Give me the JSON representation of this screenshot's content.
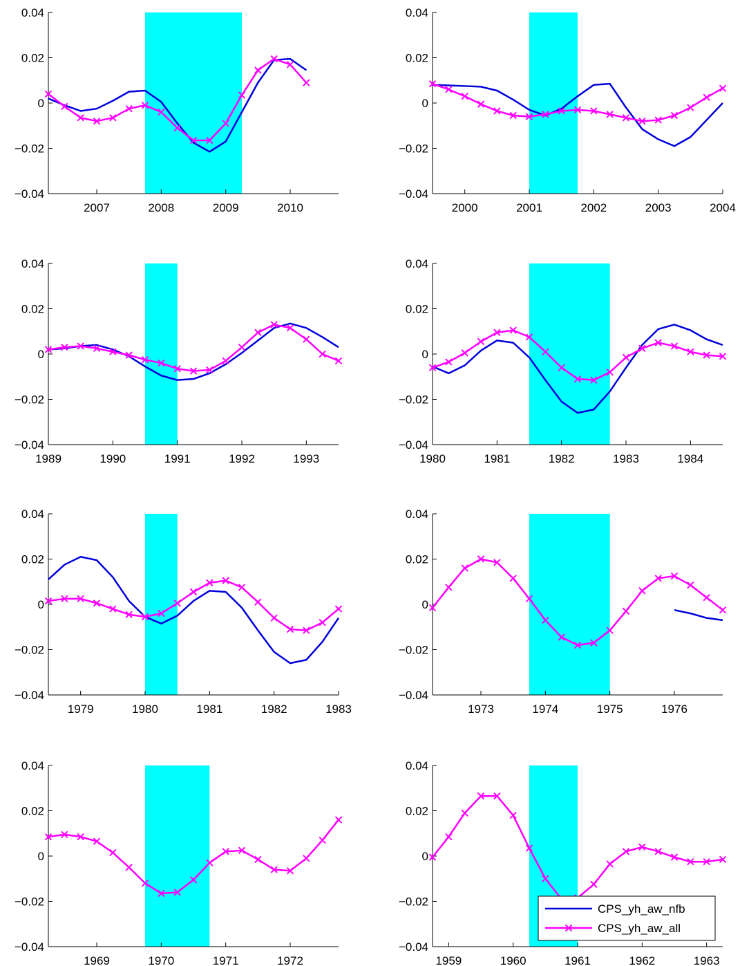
{
  "colors": {
    "recession": "#00FFFF",
    "nfb": "#0000DD",
    "all": "#FF00FF",
    "axis": "#000000"
  },
  "legend": {
    "placement": "bottom-right of last panel",
    "items": [
      {
        "name": "CPS_yh_aw_nfb",
        "color": "#0000DD",
        "marker": "none"
      },
      {
        "name": "CPS_yh_aw_all",
        "color": "#FF00FF",
        "marker": "x"
      }
    ]
  },
  "chart_data": [
    {
      "type": "line",
      "xlim": [
        2006.25,
        2010.75
      ],
      "ylim": [
        -0.04,
        0.04
      ],
      "yticks": [
        -0.04,
        -0.02,
        0,
        0.02,
        0.04
      ],
      "ytick_labels": [
        "−0.04",
        "−0.02",
        "0",
        "0.02",
        "0.04"
      ],
      "xticks": [
        2007,
        2008,
        2009,
        2010
      ],
      "xtick_labels": [
        "2007",
        "2008",
        "2009",
        "2010"
      ],
      "recession": [
        2007.75,
        2009.25
      ],
      "series": [
        {
          "name": "CPS_yh_aw_nfb",
          "x": [
            2006.25,
            2006.5,
            2006.75,
            2007.0,
            2007.25,
            2007.5,
            2007.75,
            2008.0,
            2008.25,
            2008.5,
            2008.75,
            2009.0,
            2009.25,
            2009.5,
            2009.75,
            2010.0,
            2010.25
          ],
          "y": [
            0.002,
            -0.001,
            -0.0035,
            -0.0025,
            0.001,
            0.005,
            0.0055,
            0.0005,
            -0.009,
            -0.0175,
            -0.0215,
            -0.017,
            -0.004,
            0.009,
            0.019,
            0.0195,
            0.0145
          ]
        },
        {
          "name": "CPS_yh_aw_all",
          "x": [
            2006.25,
            2006.5,
            2006.75,
            2007.0,
            2007.25,
            2007.5,
            2007.75,
            2008.0,
            2008.25,
            2008.5,
            2008.75,
            2009.0,
            2009.25,
            2009.5,
            2009.75,
            2010.0,
            2010.25
          ],
          "y": [
            0.004,
            -0.0015,
            -0.0065,
            -0.008,
            -0.0065,
            -0.0025,
            -0.001,
            -0.004,
            -0.011,
            -0.0165,
            -0.0165,
            -0.009,
            0.0035,
            0.0145,
            0.0195,
            0.017,
            0.009
          ]
        }
      ]
    },
    {
      "type": "line",
      "xlim": [
        1999.5,
        2004.0
      ],
      "ylim": [
        -0.04,
        0.04
      ],
      "yticks": [
        -0.04,
        -0.02,
        0,
        0.02,
        0.04
      ],
      "ytick_labels": [
        "−0.04",
        "−0.02",
        "0",
        "0.02",
        "0.04"
      ],
      "xticks": [
        2000,
        2001,
        2002,
        2003,
        2004
      ],
      "xtick_labels": [
        "2000",
        "2001",
        "2002",
        "2003",
        "2004"
      ],
      "recession": [
        2001.0,
        2001.75
      ],
      "series": [
        {
          "name": "CPS_yh_aw_nfb",
          "x": [
            1999.5,
            1999.75,
            2000.0,
            2000.25,
            2000.5,
            2000.75,
            2001.0,
            2001.25,
            2001.5,
            2001.75,
            2002.0,
            2002.25,
            2002.5,
            2002.75,
            2003.0,
            2003.25,
            2003.5,
            2003.75,
            2004.0
          ],
          "y": [
            0.008,
            0.0078,
            0.0075,
            0.0072,
            0.0055,
            0.0015,
            -0.003,
            -0.0055,
            -0.0025,
            0.003,
            0.008,
            0.0085,
            -0.002,
            -0.0115,
            -0.016,
            -0.019,
            -0.015,
            -0.0075,
            0.0
          ]
        },
        {
          "name": "CPS_yh_aw_all",
          "x": [
            1999.5,
            1999.75,
            2000.0,
            2000.25,
            2000.5,
            2000.75,
            2001.0,
            2001.25,
            2001.5,
            2001.75,
            2002.0,
            2002.25,
            2002.5,
            2002.75,
            2003.0,
            2003.25,
            2003.5,
            2003.75,
            2004.0
          ],
          "y": [
            0.0085,
            0.006,
            0.003,
            -0.0005,
            -0.0035,
            -0.0055,
            -0.006,
            -0.005,
            -0.0035,
            -0.003,
            -0.0035,
            -0.005,
            -0.0065,
            -0.008,
            -0.0075,
            -0.0055,
            -0.002,
            0.0025,
            0.0065
          ]
        }
      ]
    },
    {
      "type": "line",
      "xlim": [
        1989.0,
        1993.5
      ],
      "ylim": [
        -0.04,
        0.04
      ],
      "yticks": [
        -0.04,
        -0.02,
        0,
        0.02,
        0.04
      ],
      "ytick_labels": [
        "−0.04",
        "−0.02",
        "0",
        "0.02",
        "0.04"
      ],
      "xticks": [
        1989,
        1990,
        1991,
        1992,
        1993
      ],
      "xtick_labels": [
        "1989",
        "1990",
        "1991",
        "1992",
        "1993"
      ],
      "recession": [
        1990.5,
        1991.0
      ],
      "series": [
        {
          "name": "CPS_yh_aw_nfb",
          "x": [
            1989.0,
            1989.25,
            1989.5,
            1989.75,
            1990.0,
            1990.25,
            1990.5,
            1990.75,
            1991.0,
            1991.25,
            1991.5,
            1991.75,
            1992.0,
            1992.25,
            1992.5,
            1992.75,
            1993.0,
            1993.25,
            1993.5
          ],
          "y": [
            0.002,
            0.0025,
            0.0035,
            0.004,
            0.002,
            -0.001,
            -0.0055,
            -0.0095,
            -0.0115,
            -0.011,
            -0.0085,
            -0.0045,
            0.0005,
            0.006,
            0.0115,
            0.0135,
            0.0115,
            0.0075,
            0.003
          ]
        },
        {
          "name": "CPS_yh_aw_all",
          "x": [
            1989.0,
            1989.25,
            1989.5,
            1989.75,
            1990.0,
            1990.25,
            1990.5,
            1990.75,
            1991.0,
            1991.25,
            1991.5,
            1991.75,
            1992.0,
            1992.25,
            1992.5,
            1992.75,
            1993.0,
            1993.25,
            1993.5
          ],
          "y": [
            0.002,
            0.003,
            0.0035,
            0.0025,
            0.001,
            -0.0005,
            -0.0025,
            -0.004,
            -0.0065,
            -0.0075,
            -0.007,
            -0.003,
            0.003,
            0.0095,
            0.013,
            0.0115,
            0.0065,
            0.0,
            -0.003
          ]
        }
      ]
    },
    {
      "type": "line",
      "xlim": [
        1980.0,
        1984.5
      ],
      "ylim": [
        -0.04,
        0.04
      ],
      "yticks": [
        -0.04,
        -0.02,
        0,
        0.02,
        0.04
      ],
      "ytick_labels": [
        "−0.04",
        "−0.02",
        "0",
        "0.02",
        "0.04"
      ],
      "xticks": [
        1980,
        1981,
        1982,
        1983,
        1984
      ],
      "xtick_labels": [
        "1980",
        "1981",
        "1982",
        "1983",
        "1984"
      ],
      "recession": [
        1981.5,
        1982.75
      ],
      "series": [
        {
          "name": "CPS_yh_aw_nfb",
          "x": [
            1980.0,
            1980.25,
            1980.5,
            1980.75,
            1981.0,
            1981.25,
            1981.5,
            1981.75,
            1982.0,
            1982.25,
            1982.5,
            1982.75,
            1983.0,
            1983.25,
            1983.5,
            1983.75,
            1984.0,
            1984.25,
            1984.5
          ],
          "y": [
            -0.0055,
            -0.0085,
            -0.005,
            0.0015,
            0.006,
            0.005,
            -0.0015,
            -0.0115,
            -0.021,
            -0.026,
            -0.0245,
            -0.0165,
            -0.006,
            0.004,
            0.011,
            0.013,
            0.0105,
            0.0065,
            0.004
          ]
        },
        {
          "name": "CPS_yh_aw_all",
          "x": [
            1980.0,
            1980.25,
            1980.5,
            1980.75,
            1981.0,
            1981.25,
            1981.5,
            1981.75,
            1982.0,
            1982.25,
            1982.5,
            1982.75,
            1983.0,
            1983.25,
            1983.5,
            1983.75,
            1984.0,
            1984.25,
            1984.5
          ],
          "y": [
            -0.006,
            -0.0035,
            0.0005,
            0.0055,
            0.0095,
            0.0105,
            0.0075,
            0.001,
            -0.006,
            -0.011,
            -0.0115,
            -0.008,
            -0.0015,
            0.0025,
            0.005,
            0.0035,
            0.001,
            -0.0005,
            -0.001
          ]
        }
      ]
    },
    {
      "type": "line",
      "xlim": [
        1978.5,
        1983.0
      ],
      "ylim": [
        -0.04,
        0.04
      ],
      "yticks": [
        -0.04,
        -0.02,
        0,
        0.02,
        0.04
      ],
      "ytick_labels": [
        "−0.04",
        "−0.02",
        "0",
        "0.02",
        "0.04"
      ],
      "xticks": [
        1979,
        1980,
        1981,
        1982,
        1983
      ],
      "xtick_labels": [
        "1979",
        "1980",
        "1981",
        "1982",
        "1983"
      ],
      "recession": [
        1980.0,
        1980.5
      ],
      "series": [
        {
          "name": "CPS_yh_aw_nfb",
          "x": [
            1978.5,
            1978.75,
            1979.0,
            1979.25,
            1979.5,
            1979.75,
            1980.0,
            1980.25,
            1980.5,
            1980.75,
            1981.0,
            1981.25,
            1981.5,
            1981.75,
            1982.0,
            1982.25,
            1982.5,
            1982.75,
            1983.0
          ],
          "y": [
            0.011,
            0.0175,
            0.021,
            0.0195,
            0.012,
            0.0015,
            -0.0055,
            -0.0085,
            -0.005,
            0.0015,
            0.006,
            0.0055,
            -0.0015,
            -0.0115,
            -0.021,
            -0.026,
            -0.0245,
            -0.0165,
            -0.006
          ]
        },
        {
          "name": "CPS_yh_aw_all",
          "x": [
            1978.5,
            1978.75,
            1979.0,
            1979.25,
            1979.5,
            1979.75,
            1980.0,
            1980.25,
            1980.5,
            1980.75,
            1981.0,
            1981.25,
            1981.5,
            1981.75,
            1982.0,
            1982.25,
            1982.5,
            1982.75,
            1983.0
          ],
          "y": [
            0.0015,
            0.0025,
            0.0025,
            0.0005,
            -0.002,
            -0.0045,
            -0.0055,
            -0.004,
            0.0005,
            0.0055,
            0.0095,
            0.0105,
            0.0075,
            0.001,
            -0.006,
            -0.011,
            -0.0115,
            -0.008,
            -0.002
          ]
        }
      ]
    },
    {
      "type": "line",
      "xlim": [
        1972.25,
        1976.75
      ],
      "ylim": [
        -0.04,
        0.04
      ],
      "yticks": [
        -0.04,
        -0.02,
        0,
        0.02,
        0.04
      ],
      "ytick_labels": [
        "−0.04",
        "−0.02",
        "0",
        "0.02",
        "0.04"
      ],
      "xticks": [
        1973,
        1974,
        1975,
        1976
      ],
      "xtick_labels": [
        "1973",
        "1974",
        "1975",
        "1976"
      ],
      "recession": [
        1973.75,
        1975.0
      ],
      "series": [
        {
          "name": "CPS_yh_aw_nfb",
          "x": [
            1976.0,
            1976.25,
            1976.5,
            1976.75
          ],
          "y": [
            -0.0025,
            -0.004,
            -0.006,
            -0.007
          ]
        },
        {
          "name": "CPS_yh_aw_all",
          "x": [
            1972.25,
            1972.5,
            1972.75,
            1973.0,
            1973.25,
            1973.5,
            1973.75,
            1974.0,
            1974.25,
            1974.5,
            1974.75,
            1975.0,
            1975.25,
            1975.5,
            1975.75,
            1976.0,
            1976.25,
            1976.5,
            1976.75
          ],
          "y": [
            -0.0015,
            0.0075,
            0.016,
            0.02,
            0.0185,
            0.0115,
            0.0025,
            -0.007,
            -0.0145,
            -0.018,
            -0.017,
            -0.0115,
            -0.003,
            0.006,
            0.0115,
            0.0125,
            0.0085,
            0.003,
            -0.0025
          ]
        }
      ]
    },
    {
      "type": "line",
      "xlim": [
        1968.25,
        1972.75
      ],
      "ylim": [
        -0.04,
        0.04
      ],
      "yticks": [
        -0.04,
        -0.02,
        0,
        0.02,
        0.04
      ],
      "ytick_labels": [
        "−0.04",
        "−0.02",
        "0",
        "0.02",
        "0.04"
      ],
      "xticks": [
        1969,
        1970,
        1971,
        1972
      ],
      "xtick_labels": [
        "1969",
        "1970",
        "1971",
        "1972"
      ],
      "recession": [
        1969.75,
        1970.75
      ],
      "series": [
        {
          "name": "CPS_yh_aw_all",
          "x": [
            1968.25,
            1968.5,
            1968.75,
            1969.0,
            1969.25,
            1969.5,
            1969.75,
            1970.0,
            1970.25,
            1970.5,
            1970.75,
            1971.0,
            1971.25,
            1971.5,
            1971.75,
            1972.0,
            1972.25,
            1972.5,
            1972.75
          ],
          "y": [
            0.0085,
            0.0095,
            0.0085,
            0.0065,
            0.0015,
            -0.005,
            -0.012,
            -0.0165,
            -0.016,
            -0.0105,
            -0.003,
            0.002,
            0.0025,
            -0.0015,
            -0.006,
            -0.0065,
            -0.001,
            0.007,
            0.016
          ]
        }
      ]
    },
    {
      "type": "line",
      "xlim": [
        1958.75,
        1963.25
      ],
      "ylim": [
        -0.04,
        0.04
      ],
      "yticks": [
        -0.04,
        -0.02,
        0,
        0.02,
        0.04
      ],
      "ytick_labels": [
        "−0.04",
        "−0.02",
        "0",
        "0.02",
        "0.04"
      ],
      "xticks": [
        1959,
        1960,
        1961,
        1962,
        1963
      ],
      "xtick_labels": [
        "1959",
        "1960",
        "1961",
        "1962",
        "1963"
      ],
      "recession": [
        1960.25,
        1961.0
      ],
      "series": [
        {
          "name": "CPS_yh_aw_all",
          "x": [
            1958.75,
            1959.0,
            1959.25,
            1959.5,
            1959.75,
            1960.0,
            1960.25,
            1960.5,
            1960.75,
            1961.0,
            1961.25,
            1961.5,
            1961.75,
            1962.0,
            1962.25,
            1962.5,
            1962.75,
            1963.0,
            1963.25
          ],
          "y": [
            -0.0005,
            0.0085,
            0.019,
            0.0265,
            0.0265,
            0.018,
            0.0035,
            -0.01,
            -0.019,
            -0.0185,
            -0.0125,
            -0.0035,
            0.002,
            0.004,
            0.002,
            -0.0005,
            -0.0025,
            -0.0025,
            -0.0015
          ]
        }
      ]
    }
  ]
}
